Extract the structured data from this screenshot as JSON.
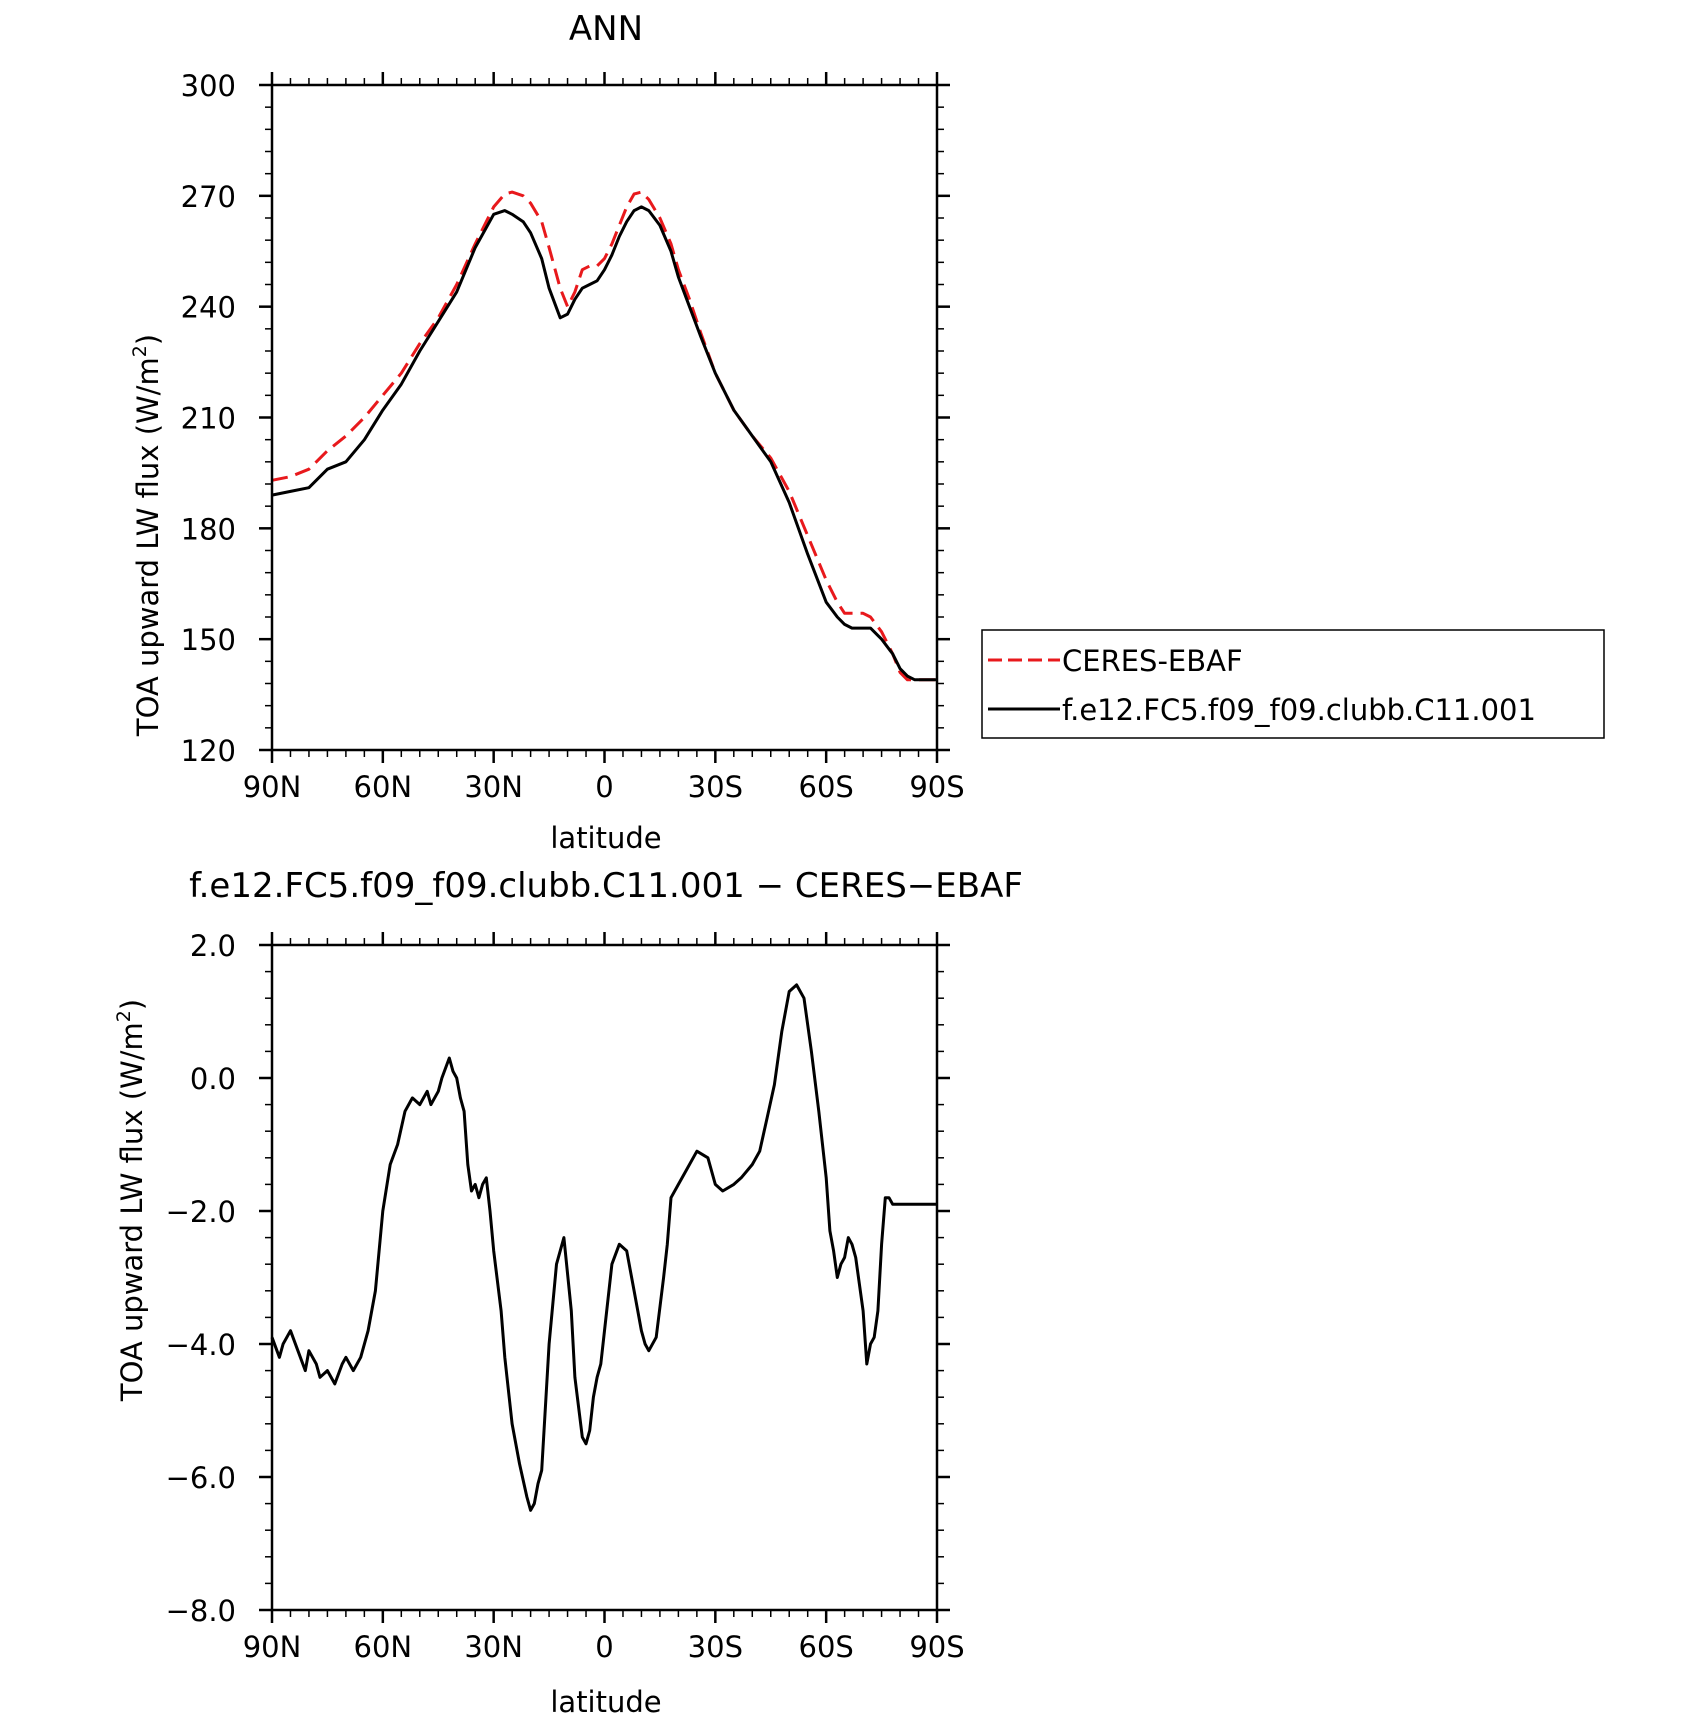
{
  "colors": {
    "observation": "#e8191c",
    "model": "#000000"
  },
  "chart_data": [
    {
      "type": "line",
      "title": "ANN",
      "xlabel": "latitude",
      "ylabel": "TOA upward LW flux (W/m",
      "ylabel_sup": "2",
      "ylabel_tail": ")",
      "xlim": [
        90,
        -90
      ],
      "ylim": [
        120,
        300
      ],
      "x_ticks": [
        90,
        60,
        30,
        0,
        -30,
        -60,
        -90
      ],
      "x_tick_labels": [
        "90N",
        "60N",
        "30N",
        "0",
        "30S",
        "60S",
        "90S"
      ],
      "y_ticks": [
        120,
        150,
        180,
        210,
        240,
        270,
        300
      ],
      "y_tick_labels": [
        "120",
        "150",
        "180",
        "210",
        "240",
        "270",
        "300"
      ],
      "legend_position": "right, outside plot",
      "series": [
        {
          "name": "CERES-EBAF",
          "style": "dashed",
          "color": "#e8191c",
          "x": [
            90,
            85,
            80,
            75,
            70,
            65,
            60,
            55,
            50,
            45,
            40,
            35,
            30,
            27,
            25,
            22,
            20,
            17,
            15,
            12,
            10,
            8,
            6,
            4,
            2,
            0,
            -2,
            -4,
            -6,
            -8,
            -10,
            -12,
            -15,
            -18,
            -20,
            -23,
            -26,
            -30,
            -35,
            -40,
            -45,
            -50,
            -55,
            -60,
            -63,
            -65,
            -67,
            -70,
            -72,
            -75,
            -78,
            -80,
            -82,
            -84,
            -86,
            -88,
            -90
          ],
          "y": [
            193,
            194,
            196,
            201,
            205,
            210,
            216,
            222,
            230,
            237,
            246,
            257,
            267,
            270.5,
            271,
            270,
            268,
            263,
            256,
            245,
            240,
            244,
            250,
            251,
            251,
            253,
            257,
            262,
            267,
            270.5,
            271,
            269,
            264,
            257,
            250,
            242,
            233,
            222,
            212,
            205,
            199,
            190,
            178,
            166,
            160,
            157,
            157,
            157,
            156,
            152,
            146,
            141,
            139,
            139,
            139,
            139,
            139
          ],
          "y_note": "estimated"
        },
        {
          "name": "f.e12.FC5.f09_f09.clubb.C11.001",
          "style": "solid",
          "color": "#000000",
          "x": [
            90,
            85,
            80,
            75,
            70,
            65,
            60,
            55,
            50,
            45,
            40,
            35,
            30,
            27,
            25,
            22,
            20,
            17,
            15,
            12,
            10,
            8,
            6,
            4,
            2,
            0,
            -2,
            -4,
            -6,
            -8,
            -10,
            -12,
            -15,
            -18,
            -20,
            -23,
            -26,
            -30,
            -35,
            -40,
            -45,
            -50,
            -55,
            -60,
            -63,
            -65,
            -67,
            -70,
            -72,
            -75,
            -78,
            -80,
            -82,
            -84,
            -86,
            -88,
            -90
          ],
          "y": [
            189,
            190,
            191,
            196,
            198,
            204,
            212,
            219,
            228,
            236,
            244,
            256,
            265,
            266,
            265,
            263,
            260,
            253,
            245,
            237,
            238,
            242,
            245,
            246,
            247,
            250,
            254,
            259,
            263,
            266,
            267,
            266,
            262,
            255,
            248,
            240,
            232,
            222,
            212,
            205,
            198,
            187,
            173,
            160,
            156,
            154,
            153,
            153,
            153,
            150,
            146,
            142,
            140,
            139,
            139,
            139,
            139
          ]
        }
      ]
    },
    {
      "type": "line",
      "title": "f.e12.FC5.f09_f09.clubb.C11.001 − CERES−EBAF",
      "xlabel": "latitude",
      "ylabel": "TOA upward LW flux (W/m",
      "ylabel_sup": "2",
      "ylabel_tail": ")",
      "xlim": [
        90,
        -90
      ],
      "ylim": [
        -8,
        2
      ],
      "x_ticks": [
        90,
        60,
        30,
        0,
        -30,
        -60,
        -90
      ],
      "x_tick_labels": [
        "90N",
        "60N",
        "30N",
        "0",
        "30S",
        "60S",
        "90S"
      ],
      "y_ticks": [
        -8,
        -6,
        -4,
        -2,
        0,
        2
      ],
      "y_tick_labels": [
        "−8.0",
        "−6.0",
        "−4.0",
        "−2.0",
        "0.0",
        "2.0"
      ],
      "series": [
        {
          "style": "solid",
          "color": "#000000",
          "x": [
            90,
            88,
            87,
            85,
            83,
            81,
            80,
            78,
            77,
            75,
            73,
            71,
            70,
            68,
            66,
            64,
            62,
            60,
            58,
            56,
            54,
            52,
            50,
            48,
            47,
            45,
            44,
            42,
            41,
            40,
            39,
            38,
            37,
            36,
            35,
            34,
            33,
            32,
            31,
            30,
            28,
            27,
            25,
            23,
            21,
            20,
            19,
            18,
            17,
            15,
            13,
            11,
            9,
            8,
            6,
            5,
            4,
            3,
            2,
            1,
            0,
            -2,
            -4,
            -6,
            -8,
            -10,
            -11,
            -12,
            -14,
            -16,
            -17,
            -18,
            -20,
            -22,
            -25,
            -28,
            -30,
            -32,
            -35,
            -37,
            -40,
            -42,
            -44,
            -46,
            -48,
            -50,
            -52,
            -54,
            -56,
            -58,
            -60,
            -61,
            -62,
            -63,
            -64,
            -65,
            -66,
            -67,
            -68,
            -69,
            -70,
            -71,
            -72,
            -73,
            -74,
            -75,
            -76,
            -77,
            -78,
            -79,
            -80,
            -81,
            -82,
            -83,
            -84,
            -85,
            -86,
            -87,
            -88,
            -89,
            -90
          ],
          "y": [
            -3.9,
            -4.2,
            -4.0,
            -3.8,
            -4.1,
            -4.4,
            -4.1,
            -4.3,
            -4.5,
            -4.4,
            -4.6,
            -4.3,
            -4.2,
            -4.4,
            -4.2,
            -3.8,
            -3.2,
            -2.0,
            -1.3,
            -1.0,
            -0.5,
            -0.3,
            -0.4,
            -0.2,
            -0.4,
            -0.2,
            0.0,
            0.3,
            0.1,
            0.0,
            -0.3,
            -0.5,
            -1.3,
            -1.7,
            -1.6,
            -1.8,
            -1.6,
            -1.5,
            -2.0,
            -2.6,
            -3.5,
            -4.2,
            -5.2,
            -5.8,
            -6.3,
            -6.5,
            -6.4,
            -6.1,
            -5.9,
            -4.0,
            -2.8,
            -2.4,
            -3.5,
            -4.5,
            -5.4,
            -5.5,
            -5.3,
            -4.8,
            -4.5,
            -4.3,
            -3.8,
            -2.8,
            -2.5,
            -2.6,
            -3.2,
            -3.8,
            -4.0,
            -4.1,
            -3.9,
            -3.0,
            -2.5,
            -1.8,
            -1.6,
            -1.4,
            -1.1,
            -1.2,
            -1.6,
            -1.7,
            -1.6,
            -1.5,
            -1.3,
            -1.1,
            -0.6,
            -0.1,
            0.7,
            1.3,
            1.4,
            1.2,
            0.4,
            -0.5,
            -1.5,
            -2.3,
            -2.6,
            -3.0,
            -2.8,
            -2.7,
            -2.4,
            -2.5,
            -2.7,
            -3.1,
            -3.5,
            -4.3,
            -4.0,
            -3.9,
            -3.5,
            -2.5,
            -1.8,
            -1.8,
            -1.9,
            -1.9,
            -1.9,
            -1.9,
            -1.9,
            -1.9,
            -1.9,
            -1.9,
            -1.9,
            -1.9,
            -1.9,
            -1.9,
            -1.9
          ]
        }
      ]
    }
  ]
}
